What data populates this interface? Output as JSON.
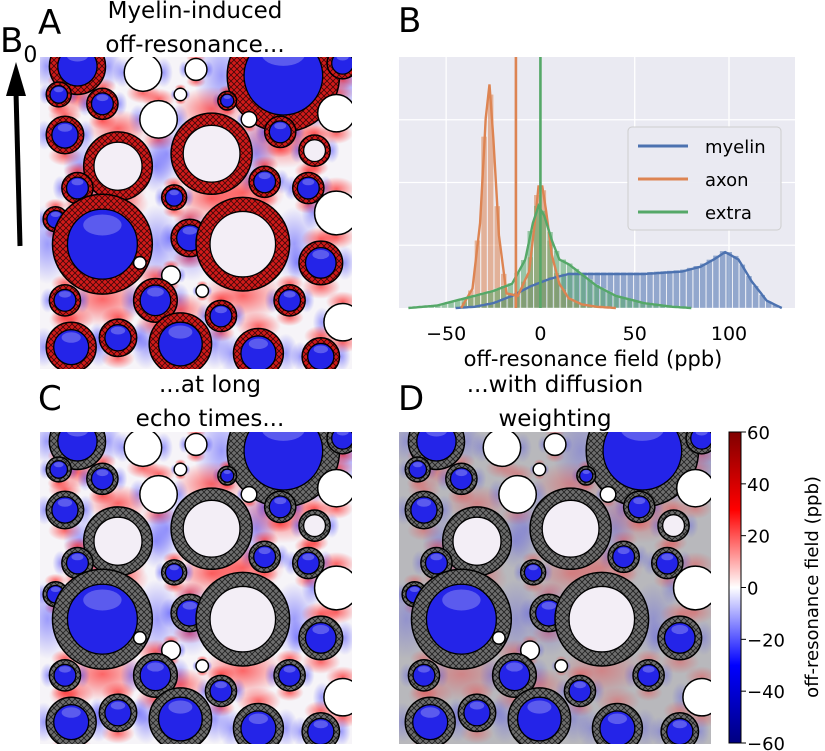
{
  "panels": {
    "A": {
      "letter": "A",
      "title_line1": "Myelin-induced",
      "title_line2": "off-resonance..."
    },
    "B": {
      "letter": "B"
    },
    "C": {
      "letter": "C",
      "title_line1": "...at long",
      "title_line2": "echo times..."
    },
    "D": {
      "letter": "D",
      "title_line1": "...with diffusion",
      "title_line2": "weighting"
    }
  },
  "field_label": {
    "main": "B",
    "sub": "0"
  },
  "colors": {
    "myelin": "#4c72b0",
    "axon": "#dd8452",
    "extra": "#55a868",
    "plot_bg": "#eaeaf2",
    "grid": "#ffffff",
    "red": "#e00000",
    "blue": "#1a1aee",
    "gray_hatch": "#7a7a7a"
  },
  "colorbar": {
    "label": "off-resonance field (ppb)",
    "ticks": [
      "60",
      "40",
      "20",
      "0",
      "−20",
      "−40",
      "−60"
    ],
    "tick_values": [
      60,
      40,
      20,
      0,
      -20,
      -40,
      -60
    ],
    "range": [
      -60,
      60
    ],
    "colormap": "seismic"
  },
  "chart_data": {
    "type": "area",
    "xlabel": "off-resonance field (ppb)",
    "ylabel": "",
    "xlim": [
      -75,
      135
    ],
    "xticks": [
      -50,
      0,
      50,
      100
    ],
    "xtick_labels": [
      "−50",
      "0",
      "50",
      "100"
    ],
    "grid": true,
    "legend_position": "right",
    "series": [
      {
        "name": "myelin",
        "x": [
          -45,
          -35,
          -25,
          -15,
          -5,
          5,
          15,
          25,
          35,
          45,
          55,
          65,
          75,
          85,
          92,
          98,
          105,
          112,
          120,
          128
        ],
        "y": [
          0.0,
          0.005,
          0.02,
          0.05,
          0.09,
          0.12,
          0.14,
          0.14,
          0.14,
          0.14,
          0.14,
          0.145,
          0.15,
          0.17,
          0.2,
          0.23,
          0.2,
          0.11,
          0.03,
          0.0
        ]
      },
      {
        "name": "axon",
        "x": [
          -42,
          -36,
          -32,
          -29,
          -27,
          -25,
          -22,
          -18,
          -12,
          -6,
          -3,
          -1,
          1,
          3,
          6,
          10,
          15,
          22,
          30,
          40
        ],
        "y": [
          0.0,
          0.08,
          0.35,
          0.78,
          0.92,
          0.7,
          0.3,
          0.06,
          0.05,
          0.15,
          0.35,
          0.5,
          0.5,
          0.4,
          0.22,
          0.1,
          0.04,
          0.015,
          0.005,
          0.0
        ]
      },
      {
        "name": "extra",
        "x": [
          -70,
          -55,
          -45,
          -35,
          -25,
          -15,
          -8,
          -4,
          -1,
          2,
          6,
          10,
          15,
          20,
          30,
          40,
          55,
          70,
          80
        ],
        "y": [
          0.0,
          0.01,
          0.03,
          0.05,
          0.07,
          0.1,
          0.2,
          0.35,
          0.42,
          0.38,
          0.28,
          0.2,
          0.18,
          0.15,
          0.09,
          0.05,
          0.02,
          0.005,
          0.0
        ]
      }
    ],
    "vertical_lines": [
      {
        "series": "axon",
        "x": -13
      },
      {
        "series": "extra",
        "x": 0
      }
    ]
  }
}
